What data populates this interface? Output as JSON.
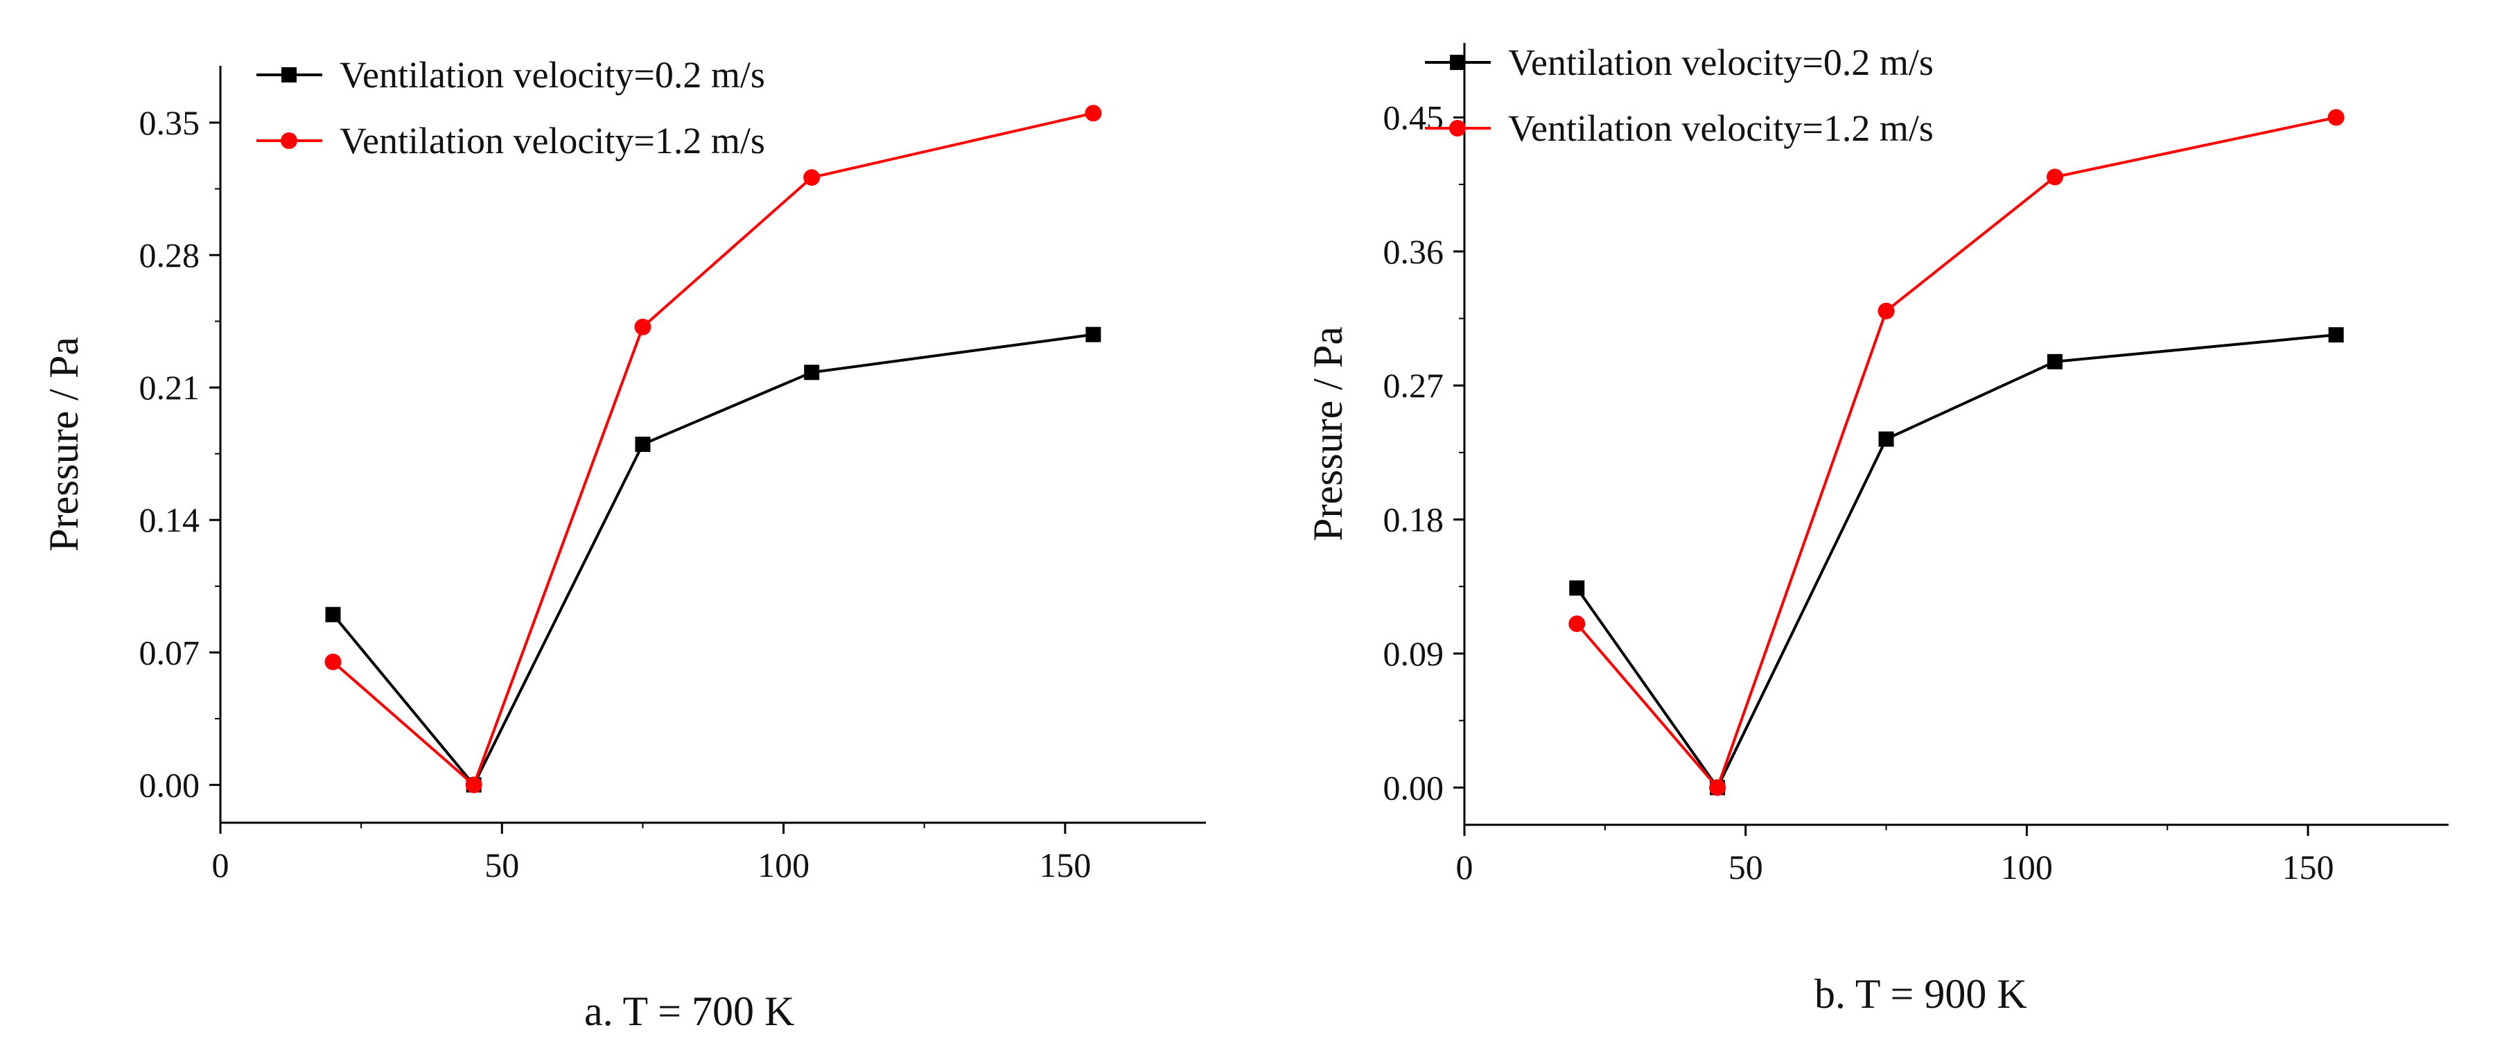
{
  "chart_data": [
    {
      "type": "line",
      "caption": "a. T = 700 K",
      "xlabel": "",
      "ylabel": "Pressure / Pa",
      "xlim": [
        0,
        175
      ],
      "ylim": [
        -0.02,
        0.38
      ],
      "xticks": [
        0,
        50,
        100,
        150
      ],
      "xtick_labels": [
        "0",
        "50",
        "100",
        "150"
      ],
      "yticks": [
        0.0,
        0.07,
        0.14,
        0.21,
        0.28,
        0.35
      ],
      "ytick_labels": [
        "0.00",
        "0.07",
        "0.14",
        "0.21",
        "0.28",
        "0.35"
      ],
      "legend_position": "top-left",
      "grid": false,
      "series": [
        {
          "name": "Ventilation velocity=0.2 m/s",
          "color": "#000000",
          "marker": "square",
          "x": [
            20,
            45,
            75,
            105,
            155
          ],
          "y": [
            0.09,
            0.0,
            0.18,
            0.218,
            0.238
          ]
        },
        {
          "name": "Ventilation velocity=1.2 m/s",
          "color": "#ff0000",
          "marker": "circle",
          "x": [
            20,
            45,
            75,
            105,
            155
          ],
          "y": [
            0.065,
            0.0,
            0.242,
            0.321,
            0.355
          ]
        }
      ]
    },
    {
      "type": "line",
      "caption": "b. T = 900 K",
      "xlabel": "",
      "ylabel": "Pressure / Pa",
      "xlim": [
        0,
        175
      ],
      "ylim": [
        -0.025,
        0.5
      ],
      "xticks": [
        0,
        50,
        100,
        150
      ],
      "xtick_labels": [
        "0",
        "50",
        "100",
        "150"
      ],
      "yticks": [
        0.0,
        0.09,
        0.18,
        0.27,
        0.36,
        0.45
      ],
      "ytick_labels": [
        "0.00",
        "0.09",
        "0.18",
        "0.27",
        "0.36",
        "0.45"
      ],
      "legend_position": "top-left",
      "grid": false,
      "series": [
        {
          "name": "Ventilation velocity=0.2 m/s",
          "color": "#000000",
          "marker": "square",
          "x": [
            20,
            45,
            75,
            105,
            155
          ],
          "y": [
            0.134,
            0.0,
            0.234,
            0.286,
            0.304
          ]
        },
        {
          "name": "Ventilation velocity=1.2 m/s",
          "color": "#ff0000",
          "marker": "circle",
          "x": [
            20,
            45,
            75,
            105,
            155
          ],
          "y": [
            0.11,
            0.0,
            0.32,
            0.41,
            0.45
          ]
        }
      ]
    }
  ]
}
